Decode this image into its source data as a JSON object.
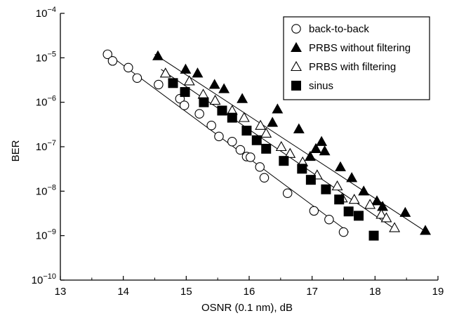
{
  "chart_data": {
    "type": "scatter",
    "xlabel": "OSNR (0.1 nm), dB",
    "ylabel": "BER",
    "xlim": [
      13,
      19
    ],
    "ylim_log10": [
      -10,
      -4
    ],
    "y_scale": "log",
    "x_ticks": [
      "13",
      "14",
      "15",
      "16",
      "17",
      "18",
      "19"
    ],
    "y_tick_exponents": [
      "−4",
      "−5",
      "−6",
      "−7",
      "−8",
      "−9",
      "−10"
    ],
    "y_tick_base": "10",
    "grid": false,
    "legend_position": "top-right",
    "series": [
      {
        "name": "back-to-back",
        "marker": "circle-open",
        "x": [
          13.75,
          13.83,
          14.08,
          14.22,
          14.56,
          14.9,
          14.97,
          15.21,
          15.4,
          15.52,
          15.73,
          15.86,
          15.96,
          16.02,
          16.17,
          16.24,
          16.61,
          17.03,
          17.27,
          17.5
        ],
        "y": [
          1.2e-05,
          8.5e-06,
          6e-06,
          3.5e-06,
          2.5e-06,
          1.2e-06,
          8.5e-07,
          5.5e-07,
          3e-07,
          1.7e-07,
          1.3e-07,
          8.5e-08,
          6e-08,
          5.8e-08,
          3.5e-08,
          2e-08,
          9e-09,
          3.6e-09,
          2.3e-09,
          1.2e-09
        ],
        "fit": [
          [
            13.73,
            1.3e-05
          ],
          [
            17.58,
            1.2e-09
          ]
        ]
      },
      {
        "name": "PRBS without filtering",
        "marker": "triangle-filled",
        "x": [
          14.55,
          14.99,
          15.18,
          15.45,
          15.6,
          15.89,
          16.37,
          16.45,
          16.79,
          16.97,
          17.06,
          17.15,
          17.2,
          17.45,
          17.63,
          17.82,
          18.03,
          18.12,
          18.48,
          18.8
        ],
        "y": [
          1.1e-05,
          5.5e-06,
          4.5e-06,
          2.5e-06,
          2e-06,
          1.2e-06,
          3.5e-07,
          7e-07,
          2.5e-07,
          6e-08,
          9e-08,
          1.3e-07,
          8e-08,
          3.5e-08,
          2e-08,
          1e-08,
          6e-09,
          4.5e-09,
          3.3e-09,
          1.3e-09
        ],
        "fit": [
          [
            14.5,
            1.2e-05
          ],
          [
            18.82,
            1.2e-09
          ]
        ]
      },
      {
        "name": "PRBS with filtering",
        "marker": "triangle-open",
        "x": [
          14.67,
          15.05,
          15.27,
          15.46,
          15.73,
          15.92,
          16.18,
          16.27,
          16.51,
          16.65,
          16.85,
          17.08,
          17.4,
          17.48,
          17.67,
          17.92,
          18.1,
          18.18,
          18.31
        ],
        "y": [
          4.5e-06,
          3e-06,
          1.5e-06,
          1.1e-06,
          6.5e-07,
          4.5e-07,
          3e-07,
          2e-07,
          1e-07,
          7e-08,
          4.5e-08,
          2.3e-08,
          1.3e-08,
          7e-09,
          6.5e-09,
          5e-09,
          3e-09,
          2.5e-09,
          1.5e-09
        ],
        "fit": [
          [
            14.6,
            5.5e-06
          ],
          [
            18.35,
            1.3e-09
          ]
        ]
      },
      {
        "name": "sinus",
        "marker": "square-filled",
        "x": [
          14.79,
          14.98,
          15.28,
          15.57,
          15.73,
          15.96,
          16.12,
          16.27,
          16.55,
          16.84,
          16.98,
          17.22,
          17.43,
          17.58,
          17.74,
          17.98
        ],
        "y": [
          2.7e-06,
          1.7e-06,
          1e-06,
          6.5e-07,
          4.5e-07,
          2.3e-07,
          1.4e-07,
          9e-08,
          4.8e-08,
          3.2e-08,
          1.8e-08,
          1.1e-08,
          6.5e-09,
          3.5e-09,
          2.8e-09,
          1e-09
        ],
        "fit": null
      }
    ]
  }
}
